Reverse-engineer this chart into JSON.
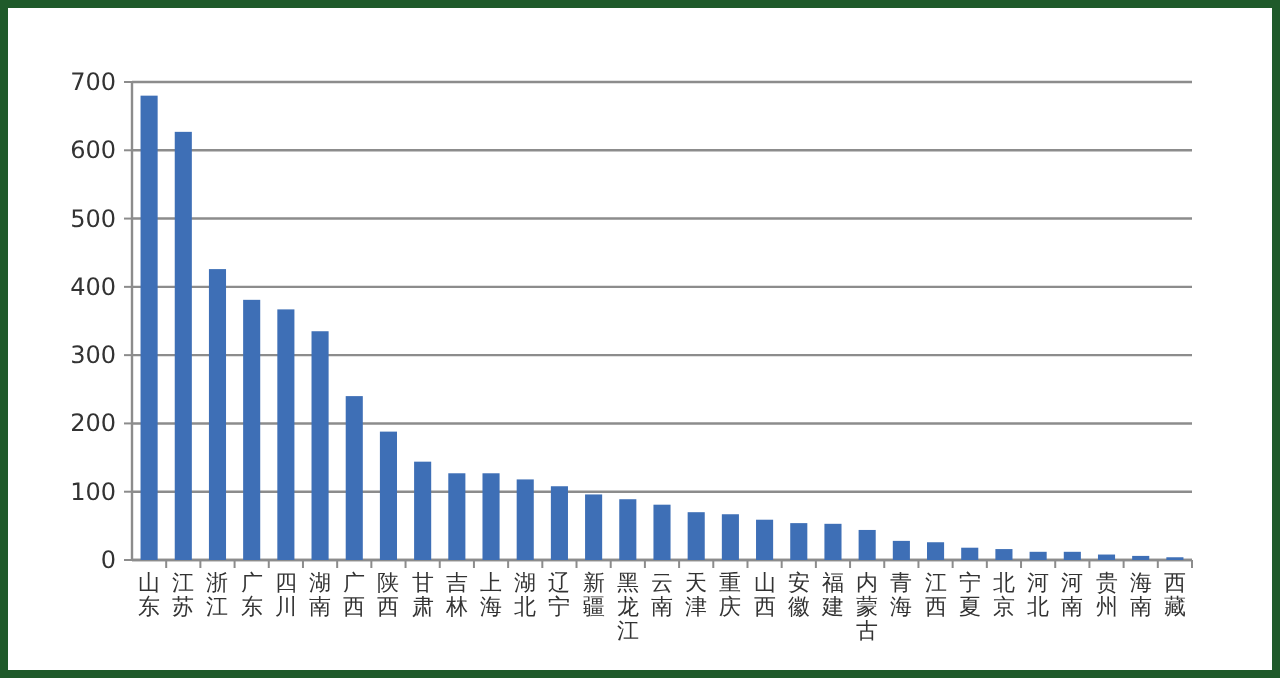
{
  "chart_data": {
    "type": "bar",
    "categories": [
      "山东",
      "江苏",
      "浙江",
      "广东",
      "四川",
      "湖南",
      "广西",
      "陕西",
      "甘肃",
      "吉林",
      "上海",
      "湖北",
      "辽宁",
      "新疆",
      "黑龙江",
      "云南",
      "天津",
      "重庆",
      "山西",
      "安徽",
      "福建",
      "内蒙古",
      "青海",
      "江西",
      "宁夏",
      "北京",
      "河北",
      "河南",
      "贵州",
      "海南",
      "西藏"
    ],
    "values": [
      680,
      627,
      426,
      381,
      367,
      335,
      240,
      188,
      144,
      127,
      127,
      118,
      108,
      96,
      89,
      81,
      70,
      67,
      59,
      54,
      53,
      44,
      28,
      26,
      18,
      16,
      12,
      12,
      8,
      6,
      4
    ],
    "color": "#3e6fb6",
    "ylim": [
      0,
      700
    ],
    "yticks": [
      0,
      100,
      200,
      300,
      400,
      500,
      600,
      700
    ],
    "grid": "y"
  }
}
